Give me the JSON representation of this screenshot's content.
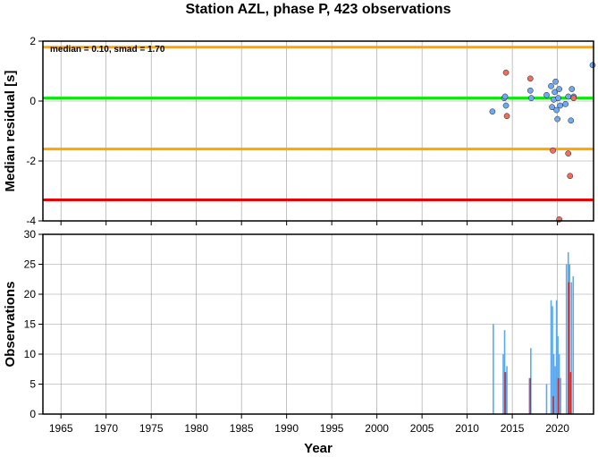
{
  "chart_data": [
    {
      "type": "scatter",
      "title": "Station AZL, phase P, 423 observations",
      "annotation": "median = 0.10, smad = 1.70",
      "ylabel": "Median residual [s]",
      "xlim": [
        1963,
        2024
      ],
      "ylim": [
        -4,
        2
      ],
      "yticks": [
        2,
        0,
        -2,
        -4
      ],
      "grid": true,
      "reference_lines": [
        {
          "name": "upper",
          "y": 1.8,
          "color": "#ffa500"
        },
        {
          "name": "median",
          "y": 0.1,
          "color": "#00ee00"
        },
        {
          "name": "lower",
          "y": -1.6,
          "color": "#ffa500"
        },
        {
          "name": "limit",
          "y": -3.3,
          "color": "#ee0000"
        }
      ],
      "series": [
        {
          "color": "#6fa8f5",
          "points": [
            [
              2012.8,
              -0.35
            ],
            [
              2014.1,
              0.1
            ],
            [
              2014.2,
              0.15
            ],
            [
              2014.3,
              -0.15
            ],
            [
              2017.0,
              0.35
            ],
            [
              2017.1,
              0.1
            ],
            [
              2018.8,
              0.2
            ],
            [
              2019.3,
              0.5
            ],
            [
              2019.4,
              -0.2
            ],
            [
              2019.6,
              0.05
            ],
            [
              2019.7,
              0.3
            ],
            [
              2019.8,
              0.65
            ],
            [
              2019.9,
              -0.3
            ],
            [
              2020.0,
              -0.6
            ],
            [
              2020.1,
              0.1
            ],
            [
              2020.2,
              0.4
            ],
            [
              2020.3,
              -0.15
            ],
            [
              2020.9,
              -0.1
            ],
            [
              2021.2,
              0.15
            ],
            [
              2021.5,
              -0.65
            ],
            [
              2021.6,
              0.4
            ],
            [
              2021.8,
              0.15
            ],
            [
              2023.9,
              1.2
            ]
          ]
        },
        {
          "color": "#f26b5b",
          "points": [
            [
              2014.3,
              0.95
            ],
            [
              2014.4,
              -0.5
            ],
            [
              2017.0,
              0.75
            ],
            [
              2019.5,
              -1.65
            ],
            [
              2020.2,
              -3.95
            ],
            [
              2021.2,
              -1.75
            ],
            [
              2021.4,
              -2.5
            ],
            [
              2021.8,
              0.1
            ]
          ]
        }
      ]
    },
    {
      "type": "bar",
      "ylabel": "Observations",
      "xlabel": "Year",
      "xlim": [
        1963,
        2024
      ],
      "ylim": [
        0,
        30
      ],
      "xticks": [
        1965,
        1970,
        1975,
        1980,
        1985,
        1990,
        1995,
        2000,
        2005,
        2010,
        2015,
        2020
      ],
      "yticks": [
        0,
        5,
        10,
        15,
        20,
        25,
        30
      ],
      "grid": true,
      "series": [
        {
          "color": "#5aa9f0",
          "bars": [
            [
              2012.9,
              15
            ],
            [
              2014.0,
              10
            ],
            [
              2014.15,
              14
            ],
            [
              2014.3,
              7
            ],
            [
              2014.4,
              8
            ],
            [
              2016.9,
              6
            ],
            [
              2017.05,
              11
            ],
            [
              2018.8,
              5
            ],
            [
              2019.3,
              19
            ],
            [
              2019.45,
              18
            ],
            [
              2019.6,
              10
            ],
            [
              2019.75,
              8
            ],
            [
              2019.9,
              19
            ],
            [
              2020.05,
              13
            ],
            [
              2020.2,
              10
            ],
            [
              2020.35,
              6
            ],
            [
              2021.0,
              25
            ],
            [
              2021.2,
              27
            ],
            [
              2021.35,
              25
            ],
            [
              2021.55,
              22
            ],
            [
              2021.75,
              23
            ]
          ]
        },
        {
          "color": "#cc2b2b",
          "bars": [
            [
              2014.2,
              7
            ],
            [
              2017.0,
              6
            ],
            [
              2019.55,
              3
            ],
            [
              2020.1,
              6
            ],
            [
              2021.25,
              22
            ],
            [
              2021.45,
              7
            ]
          ]
        }
      ]
    }
  ]
}
